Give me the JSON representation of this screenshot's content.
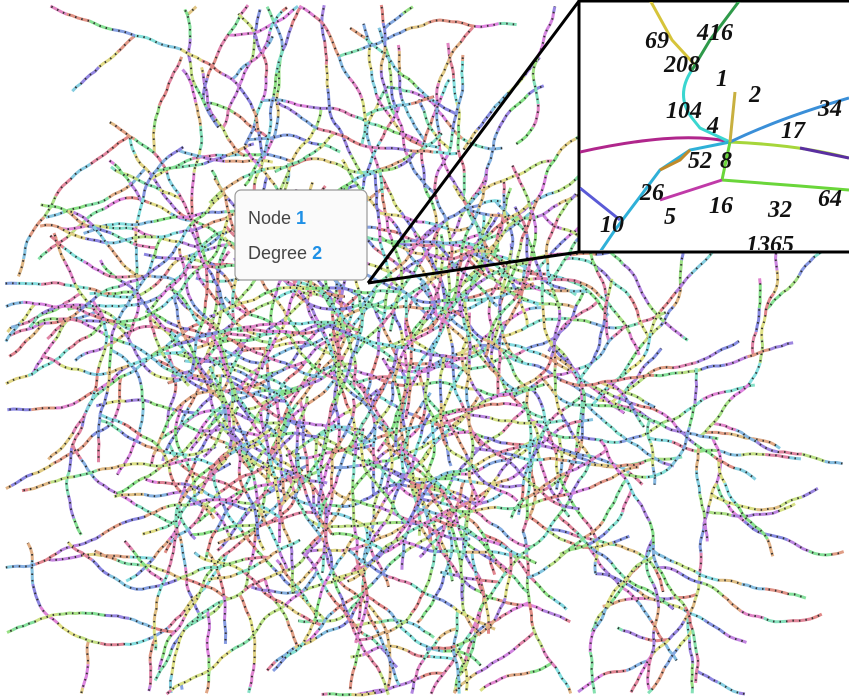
{
  "datatip": {
    "rows": [
      {
        "label": "Node",
        "value": "1"
      },
      {
        "label": "Degree",
        "value": "2"
      }
    ]
  },
  "inset": {
    "node_labels": [
      "69",
      "416",
      "208",
      "1",
      "2",
      "104",
      "4",
      "34",
      "17",
      "52",
      "8",
      "26",
      "16",
      "32",
      "64",
      "10",
      "5",
      "1365"
    ]
  }
}
